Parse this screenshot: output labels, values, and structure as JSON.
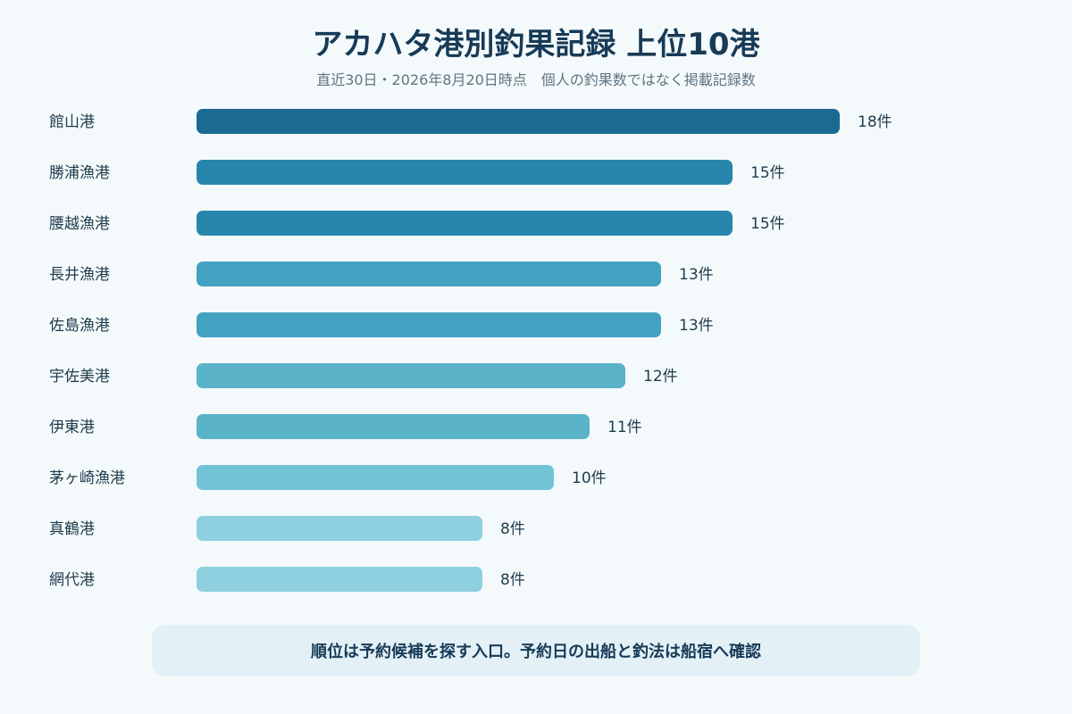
{
  "chart_data": {
    "type": "bar",
    "orientation": "horizontal",
    "title": "アカハタ港別釣果記録 上位10港",
    "subtitle": "直近30日・2026年8月20日時点　個人の釣果数ではなく掲載記録数",
    "categories": [
      "館山港",
      "勝浦漁港",
      "腰越漁港",
      "長井漁港",
      "佐島漁港",
      "宇佐美港",
      "伊東港",
      "茅ヶ崎漁港",
      "真鶴港",
      "網代港"
    ],
    "values": [
      18,
      15,
      15,
      13,
      13,
      12,
      11,
      10,
      8,
      8
    ],
    "value_labels": [
      "18件",
      "15件",
      "15件",
      "13件",
      "13件",
      "12件",
      "11件",
      "10件",
      "8件",
      "8件"
    ],
    "colors": [
      "#1a6a92",
      "#2886ad",
      "#2886ad",
      "#43a2c2",
      "#43a2c2",
      "#5ab3c9",
      "#5ab3c9",
      "#72c3d6",
      "#8ed0df",
      "#8ed0df"
    ],
    "xlim": [
      0,
      18
    ],
    "grid": false,
    "legend": "none"
  },
  "note": "順位は予約候補を探す入口。予約日の出船と釣法は船宿へ確認"
}
